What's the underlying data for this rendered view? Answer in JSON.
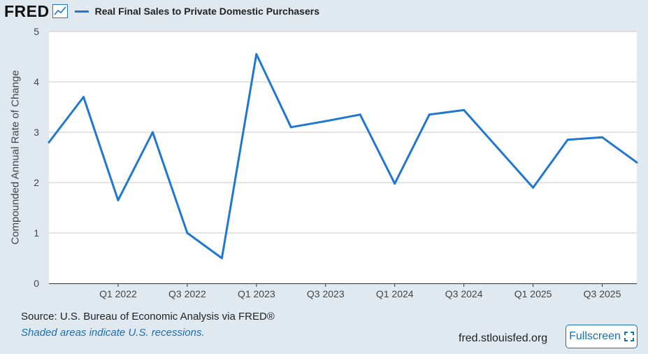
{
  "header": {
    "logo_text": "FRED",
    "logo_icon": "line-chart-icon"
  },
  "legend": {
    "label": "Real Final Sales to Private Domestic Purchasers",
    "color": "#1f77d2"
  },
  "footer": {
    "source": "Source: U.S. Bureau of Economic Analysis via FRED®",
    "note": "Shaded areas indicate U.S. recessions.",
    "site": "fred.stlouisfed.org",
    "fullscreen_label": "Fullscreen",
    "fullscreen_icon": "expand-icon"
  },
  "chart_data": {
    "type": "line",
    "ylabel": "Compounded Annual Rate of Change",
    "xlabel": "",
    "ylim": [
      0,
      5
    ],
    "yticks": [
      0,
      1,
      2,
      3,
      4,
      5
    ],
    "grid": true,
    "x_tick_labels": [
      "Q1 2022",
      "Q3 2022",
      "Q1 2023",
      "Q3 2023",
      "Q1 2024",
      "Q3 2024",
      "Q1 2025",
      "Q3 2025"
    ],
    "series": [
      {
        "name": "Real Final Sales to Private Domestic Purchasers",
        "color": "#1f77d2",
        "x": [
          "Q3 2021",
          "Q4 2021",
          "Q1 2022",
          "Q2 2022",
          "Q3 2022",
          "Q4 2022",
          "Q1 2023",
          "Q2 2023",
          "Q3 2023",
          "Q4 2023",
          "Q1 2024",
          "Q2 2024",
          "Q3 2024",
          "Q4 2024",
          "Q1 2025",
          "Q2 2025",
          "Q3 2025",
          "Q4 2025"
        ],
        "values": [
          2.8,
          3.7,
          1.65,
          3.0,
          1.0,
          0.5,
          4.55,
          3.1,
          3.22,
          3.35,
          1.98,
          3.35,
          3.44,
          2.67,
          1.9,
          2.85,
          2.9,
          2.4
        ]
      }
    ]
  }
}
